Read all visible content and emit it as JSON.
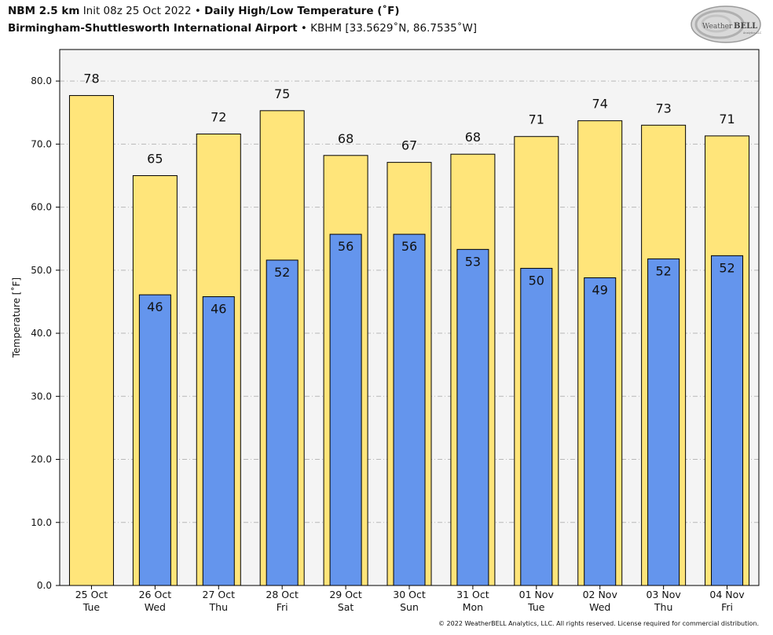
{
  "header": {
    "model": "NBM 2.5 km",
    "init": "Init 08z 25 Oct 2022",
    "bullet": "•",
    "product": "Daily High/Low Temperature (˚F)",
    "station_name": "Birmingham-Shuttlesworth International Airport",
    "station_id": "KBHM [33.5629˚N, 86.7535˚W]"
  },
  "logo": {
    "text_weather": "Weather",
    "text_bell": "BELL",
    "text_sub": "Analytics LLC"
  },
  "copyright": "© 2022 WeatherBELL Analytics, LLC. All rights reserved. License required for commercial distribution.",
  "colors": {
    "high_bar": "#FFE57A",
    "low_bar": "#6495ED",
    "plot_background": "#F4F4F4",
    "gridline": "#B8B8B8"
  },
  "chart_data": {
    "type": "bar",
    "ylabel": "Temperature [˚F]",
    "ylim": [
      0,
      85
    ],
    "yticks": [
      0,
      10,
      20,
      30,
      40,
      50,
      60,
      70,
      80
    ],
    "ytick_labels": [
      "0.0",
      "10.0",
      "20.0",
      "30.0",
      "40.0",
      "50.0",
      "60.0",
      "70.0",
      "80.0"
    ],
    "grid": true,
    "categories": [
      {
        "date": "25 Oct",
        "day": "Tue"
      },
      {
        "date": "26 Oct",
        "day": "Wed"
      },
      {
        "date": "27 Oct",
        "day": "Thu"
      },
      {
        "date": "28 Oct",
        "day": "Fri"
      },
      {
        "date": "29 Oct",
        "day": "Sat"
      },
      {
        "date": "30 Oct",
        "day": "Sun"
      },
      {
        "date": "31 Oct",
        "day": "Mon"
      },
      {
        "date": "01 Nov",
        "day": "Tue"
      },
      {
        "date": "02 Nov",
        "day": "Wed"
      },
      {
        "date": "03 Nov",
        "day": "Thu"
      },
      {
        "date": "04 Nov",
        "day": "Fri"
      }
    ],
    "series": [
      {
        "values": [
          77.7,
          65.0,
          71.6,
          75.3,
          68.2,
          67.1,
          68.4,
          71.2,
          73.7,
          73.0,
          71.3
        ],
        "labels": [
          "78",
          "65",
          "72",
          "75",
          "68",
          "67",
          "68",
          "71",
          "74",
          "73",
          "71"
        ]
      },
      {
        "values": [
          null,
          46.1,
          45.8,
          51.6,
          55.7,
          55.7,
          53.3,
          50.3,
          48.8,
          51.8,
          52.3
        ],
        "labels": [
          "",
          "46",
          "46",
          "52",
          "56",
          "56",
          "53",
          "50",
          "49",
          "52",
          "52"
        ]
      }
    ]
  }
}
